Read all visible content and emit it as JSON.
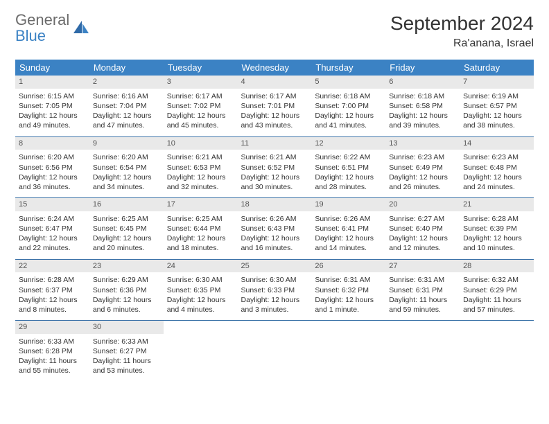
{
  "brand": {
    "part1": "General",
    "part2": "Blue"
  },
  "title": "September 2024",
  "location": "Ra'anana, Israel",
  "colors": {
    "header_bg": "#3b82c4",
    "header_text": "#ffffff",
    "daynum_bg": "#e9e9e9",
    "text": "#333333",
    "brand_gray": "#6b6b6b",
    "brand_blue": "#3b82c4",
    "separator": "#3b72a8",
    "background": "#ffffff"
  },
  "days_of_week": [
    "Sunday",
    "Monday",
    "Tuesday",
    "Wednesday",
    "Thursday",
    "Friday",
    "Saturday"
  ],
  "weeks": [
    [
      {
        "n": "1",
        "sunrise": "Sunrise: 6:15 AM",
        "sunset": "Sunset: 7:05 PM",
        "daylight": "Daylight: 12 hours and 49 minutes."
      },
      {
        "n": "2",
        "sunrise": "Sunrise: 6:16 AM",
        "sunset": "Sunset: 7:04 PM",
        "daylight": "Daylight: 12 hours and 47 minutes."
      },
      {
        "n": "3",
        "sunrise": "Sunrise: 6:17 AM",
        "sunset": "Sunset: 7:02 PM",
        "daylight": "Daylight: 12 hours and 45 minutes."
      },
      {
        "n": "4",
        "sunrise": "Sunrise: 6:17 AM",
        "sunset": "Sunset: 7:01 PM",
        "daylight": "Daylight: 12 hours and 43 minutes."
      },
      {
        "n": "5",
        "sunrise": "Sunrise: 6:18 AM",
        "sunset": "Sunset: 7:00 PM",
        "daylight": "Daylight: 12 hours and 41 minutes."
      },
      {
        "n": "6",
        "sunrise": "Sunrise: 6:18 AM",
        "sunset": "Sunset: 6:58 PM",
        "daylight": "Daylight: 12 hours and 39 minutes."
      },
      {
        "n": "7",
        "sunrise": "Sunrise: 6:19 AM",
        "sunset": "Sunset: 6:57 PM",
        "daylight": "Daylight: 12 hours and 38 minutes."
      }
    ],
    [
      {
        "n": "8",
        "sunrise": "Sunrise: 6:20 AM",
        "sunset": "Sunset: 6:56 PM",
        "daylight": "Daylight: 12 hours and 36 minutes."
      },
      {
        "n": "9",
        "sunrise": "Sunrise: 6:20 AM",
        "sunset": "Sunset: 6:54 PM",
        "daylight": "Daylight: 12 hours and 34 minutes."
      },
      {
        "n": "10",
        "sunrise": "Sunrise: 6:21 AM",
        "sunset": "Sunset: 6:53 PM",
        "daylight": "Daylight: 12 hours and 32 minutes."
      },
      {
        "n": "11",
        "sunrise": "Sunrise: 6:21 AM",
        "sunset": "Sunset: 6:52 PM",
        "daylight": "Daylight: 12 hours and 30 minutes."
      },
      {
        "n": "12",
        "sunrise": "Sunrise: 6:22 AM",
        "sunset": "Sunset: 6:51 PM",
        "daylight": "Daylight: 12 hours and 28 minutes."
      },
      {
        "n": "13",
        "sunrise": "Sunrise: 6:23 AM",
        "sunset": "Sunset: 6:49 PM",
        "daylight": "Daylight: 12 hours and 26 minutes."
      },
      {
        "n": "14",
        "sunrise": "Sunrise: 6:23 AM",
        "sunset": "Sunset: 6:48 PM",
        "daylight": "Daylight: 12 hours and 24 minutes."
      }
    ],
    [
      {
        "n": "15",
        "sunrise": "Sunrise: 6:24 AM",
        "sunset": "Sunset: 6:47 PM",
        "daylight": "Daylight: 12 hours and 22 minutes."
      },
      {
        "n": "16",
        "sunrise": "Sunrise: 6:25 AM",
        "sunset": "Sunset: 6:45 PM",
        "daylight": "Daylight: 12 hours and 20 minutes."
      },
      {
        "n": "17",
        "sunrise": "Sunrise: 6:25 AM",
        "sunset": "Sunset: 6:44 PM",
        "daylight": "Daylight: 12 hours and 18 minutes."
      },
      {
        "n": "18",
        "sunrise": "Sunrise: 6:26 AM",
        "sunset": "Sunset: 6:43 PM",
        "daylight": "Daylight: 12 hours and 16 minutes."
      },
      {
        "n": "19",
        "sunrise": "Sunrise: 6:26 AM",
        "sunset": "Sunset: 6:41 PM",
        "daylight": "Daylight: 12 hours and 14 minutes."
      },
      {
        "n": "20",
        "sunrise": "Sunrise: 6:27 AM",
        "sunset": "Sunset: 6:40 PM",
        "daylight": "Daylight: 12 hours and 12 minutes."
      },
      {
        "n": "21",
        "sunrise": "Sunrise: 6:28 AM",
        "sunset": "Sunset: 6:39 PM",
        "daylight": "Daylight: 12 hours and 10 minutes."
      }
    ],
    [
      {
        "n": "22",
        "sunrise": "Sunrise: 6:28 AM",
        "sunset": "Sunset: 6:37 PM",
        "daylight": "Daylight: 12 hours and 8 minutes."
      },
      {
        "n": "23",
        "sunrise": "Sunrise: 6:29 AM",
        "sunset": "Sunset: 6:36 PM",
        "daylight": "Daylight: 12 hours and 6 minutes."
      },
      {
        "n": "24",
        "sunrise": "Sunrise: 6:30 AM",
        "sunset": "Sunset: 6:35 PM",
        "daylight": "Daylight: 12 hours and 4 minutes."
      },
      {
        "n": "25",
        "sunrise": "Sunrise: 6:30 AM",
        "sunset": "Sunset: 6:33 PM",
        "daylight": "Daylight: 12 hours and 3 minutes."
      },
      {
        "n": "26",
        "sunrise": "Sunrise: 6:31 AM",
        "sunset": "Sunset: 6:32 PM",
        "daylight": "Daylight: 12 hours and 1 minute."
      },
      {
        "n": "27",
        "sunrise": "Sunrise: 6:31 AM",
        "sunset": "Sunset: 6:31 PM",
        "daylight": "Daylight: 11 hours and 59 minutes."
      },
      {
        "n": "28",
        "sunrise": "Sunrise: 6:32 AM",
        "sunset": "Sunset: 6:29 PM",
        "daylight": "Daylight: 11 hours and 57 minutes."
      }
    ],
    [
      {
        "n": "29",
        "sunrise": "Sunrise: 6:33 AM",
        "sunset": "Sunset: 6:28 PM",
        "daylight": "Daylight: 11 hours and 55 minutes."
      },
      {
        "n": "30",
        "sunrise": "Sunrise: 6:33 AM",
        "sunset": "Sunset: 6:27 PM",
        "daylight": "Daylight: 11 hours and 53 minutes."
      },
      null,
      null,
      null,
      null,
      null
    ]
  ]
}
